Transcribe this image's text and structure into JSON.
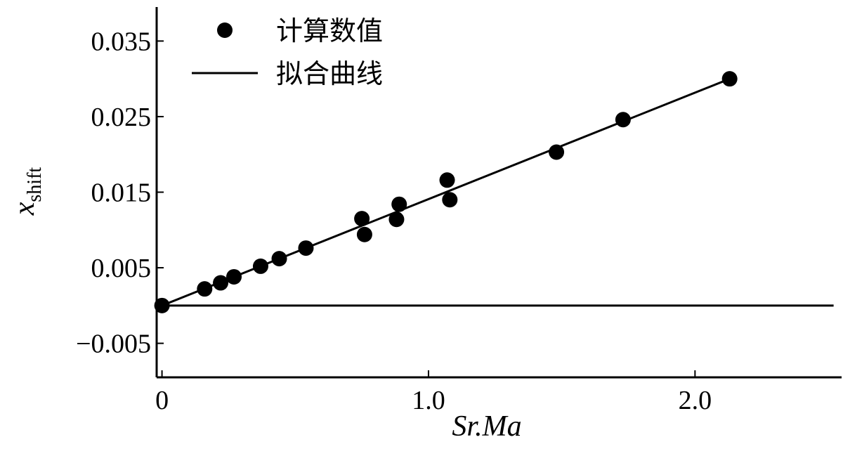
{
  "chart_data": {
    "type": "scatter",
    "xlabel": "Sr.Ma",
    "ylabel": {
      "main": "x",
      "sub": "shift"
    },
    "xlim": [
      -0.02,
      2.55
    ],
    "ylim": [
      -0.0095,
      0.0395
    ],
    "x_ticks": [
      {
        "value": 0,
        "label": "0"
      },
      {
        "value": 1.0,
        "label": "1.0"
      },
      {
        "value": 2.0,
        "label": "2.0"
      }
    ],
    "y_ticks": [
      {
        "value": 0.035,
        "label": "0.035"
      },
      {
        "value": 0.025,
        "label": "0.025"
      },
      {
        "value": 0.015,
        "label": "0.015"
      },
      {
        "value": 0.005,
        "label": "0.005"
      },
      {
        "value": -0.005,
        "label": "−0.005"
      }
    ],
    "series": [
      {
        "name": "计算数值",
        "kind": "points",
        "x": [
          0,
          0.16,
          0.22,
          0.27,
          0.37,
          0.44,
          0.54,
          0.75,
          0.76,
          0.88,
          0.89,
          1.07,
          1.08,
          1.48,
          1.73,
          2.13
        ],
        "y": [
          0.0,
          0.0022,
          0.003,
          0.0038,
          0.0052,
          0.0062,
          0.0076,
          0.0115,
          0.0094,
          0.0114,
          0.0134,
          0.0166,
          0.014,
          0.0203,
          0.0246,
          0.03
        ]
      },
      {
        "name": "拟合曲线",
        "kind": "line",
        "x": [
          0,
          2.13
        ],
        "y": [
          0,
          0.03
        ]
      }
    ],
    "baseline": {
      "y": 0,
      "x": [
        0,
        2.52
      ]
    },
    "legend": {
      "position": "top-left"
    },
    "grid": false
  }
}
